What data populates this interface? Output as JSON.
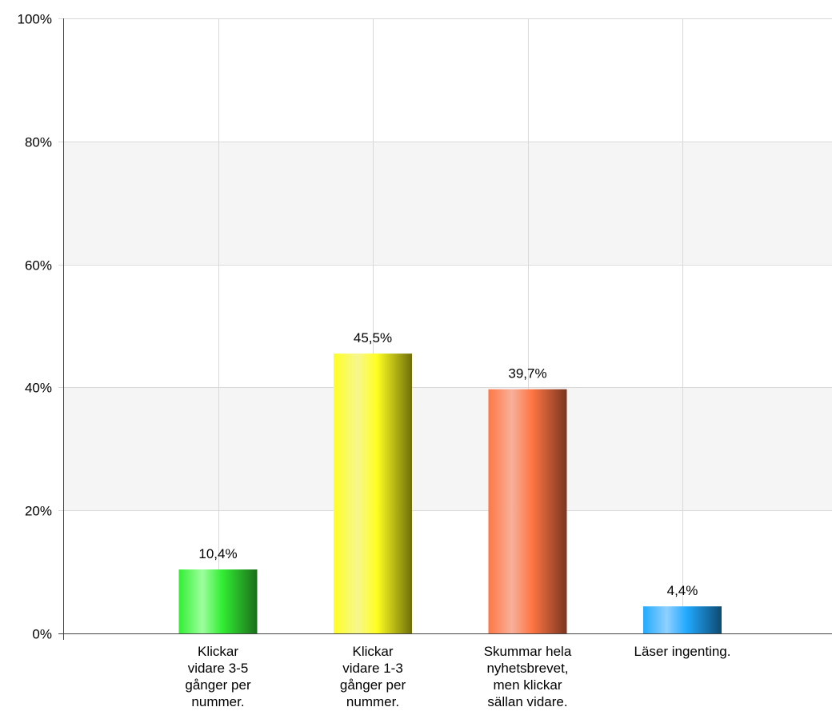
{
  "chart_data": {
    "type": "bar",
    "categories": [
      "Klickar\nvidare 3-5\ngånger per\nnummer.",
      "Klickar\nvidare 1-3\ngånger per\nnummer.",
      "Skummar hela\nnyhetsbrevet,\nmen klickar\nsällan vidare.",
      "Läser ingenting."
    ],
    "values": [
      10.4,
      45.5,
      39.7,
      4.4
    ],
    "value_labels": [
      "10,4%",
      "45,5%",
      "39,7%",
      "4,4%"
    ],
    "ylim": [
      0,
      100
    ],
    "yticks": [
      0,
      20,
      40,
      60,
      80,
      100
    ],
    "ytick_labels": [
      "0%",
      "20%",
      "40%",
      "60%",
      "80%",
      "100%"
    ],
    "grid": true,
    "bar_colors": [
      {
        "light": "#9dff9d",
        "base": "#33ee33",
        "dark": "#1a6e1a"
      },
      {
        "light": "#f6f68f",
        "base": "#ffff22",
        "dark": "#6e6e0a"
      },
      {
        "light": "#f6b09a",
        "base": "#ff7744",
        "dark": "#7a3520"
      },
      {
        "light": "#8fd0ff",
        "base": "#22aaff",
        "dark": "#0d4a70"
      }
    ],
    "band_color": "#f5f5f5",
    "grid_color": "#d9d9d9"
  }
}
